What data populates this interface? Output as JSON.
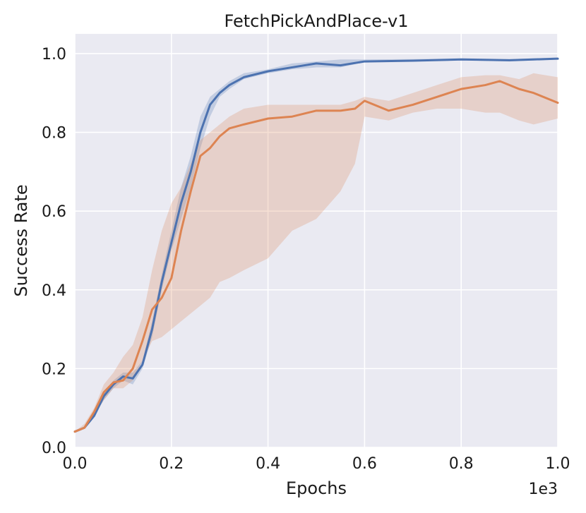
{
  "chart_data": {
    "type": "line",
    "title": "FetchPickAndPlace-v1",
    "xlabel": "Epochs",
    "ylabel": "Success Rate",
    "x_offset_label": "1e3",
    "xlim": [
      0,
      1.0
    ],
    "ylim": [
      0,
      1.05
    ],
    "xticks": [
      "0.0",
      "0.2",
      "0.4",
      "0.6",
      "0.8",
      "1.0"
    ],
    "yticks": [
      "0.0",
      "0.2",
      "0.4",
      "0.6",
      "0.8",
      "1.0"
    ],
    "grid": true,
    "background": "#eaeaf2",
    "series": [
      {
        "color": "#4c72b0",
        "x": [
          0.0,
          0.02,
          0.04,
          0.06,
          0.08,
          0.1,
          0.12,
          0.14,
          0.16,
          0.18,
          0.2,
          0.22,
          0.24,
          0.26,
          0.28,
          0.3,
          0.32,
          0.35,
          0.4,
          0.45,
          0.5,
          0.55,
          0.6,
          0.7,
          0.8,
          0.9,
          1.0
        ],
        "y": [
          0.04,
          0.05,
          0.08,
          0.13,
          0.16,
          0.18,
          0.175,
          0.21,
          0.3,
          0.42,
          0.52,
          0.62,
          0.7,
          0.8,
          0.87,
          0.9,
          0.92,
          0.94,
          0.955,
          0.965,
          0.975,
          0.97,
          0.98,
          0.982,
          0.985,
          0.983,
          0.987
        ],
        "lower": [
          0.04,
          0.05,
          0.08,
          0.12,
          0.15,
          0.17,
          0.16,
          0.2,
          0.28,
          0.4,
          0.5,
          0.58,
          0.66,
          0.76,
          0.84,
          0.89,
          0.91,
          0.935,
          0.95,
          0.96,
          0.965,
          0.965,
          0.978,
          0.98,
          0.983,
          0.98,
          0.985
        ],
        "upper": [
          0.04,
          0.05,
          0.09,
          0.14,
          0.17,
          0.19,
          0.19,
          0.22,
          0.32,
          0.44,
          0.55,
          0.66,
          0.74,
          0.84,
          0.89,
          0.91,
          0.93,
          0.95,
          0.96,
          0.975,
          0.98,
          0.985,
          0.985,
          0.986,
          0.988,
          0.986,
          0.99
        ]
      },
      {
        "color": "#dd8452",
        "x": [
          0.0,
          0.02,
          0.04,
          0.06,
          0.08,
          0.1,
          0.12,
          0.14,
          0.16,
          0.18,
          0.2,
          0.22,
          0.24,
          0.26,
          0.28,
          0.3,
          0.32,
          0.35,
          0.4,
          0.45,
          0.5,
          0.55,
          0.58,
          0.6,
          0.65,
          0.7,
          0.75,
          0.8,
          0.85,
          0.88,
          0.92,
          0.95,
          1.0
        ],
        "y": [
          0.04,
          0.05,
          0.09,
          0.14,
          0.165,
          0.17,
          0.2,
          0.27,
          0.35,
          0.38,
          0.43,
          0.55,
          0.65,
          0.74,
          0.76,
          0.79,
          0.81,
          0.82,
          0.835,
          0.84,
          0.855,
          0.855,
          0.86,
          0.88,
          0.855,
          0.87,
          0.89,
          0.91,
          0.92,
          0.93,
          0.91,
          0.9,
          0.875
        ],
        "lower": [
          0.04,
          0.05,
          0.08,
          0.12,
          0.15,
          0.15,
          0.17,
          0.22,
          0.27,
          0.28,
          0.3,
          0.32,
          0.34,
          0.36,
          0.38,
          0.42,
          0.43,
          0.45,
          0.48,
          0.55,
          0.58,
          0.65,
          0.72,
          0.84,
          0.83,
          0.85,
          0.86,
          0.86,
          0.85,
          0.85,
          0.83,
          0.82,
          0.835
        ],
        "upper": [
          0.04,
          0.06,
          0.1,
          0.16,
          0.19,
          0.23,
          0.26,
          0.33,
          0.45,
          0.55,
          0.62,
          0.66,
          0.72,
          0.78,
          0.8,
          0.82,
          0.84,
          0.86,
          0.87,
          0.87,
          0.87,
          0.87,
          0.88,
          0.89,
          0.88,
          0.9,
          0.92,
          0.94,
          0.945,
          0.945,
          0.935,
          0.95,
          0.94
        ]
      }
    ]
  }
}
